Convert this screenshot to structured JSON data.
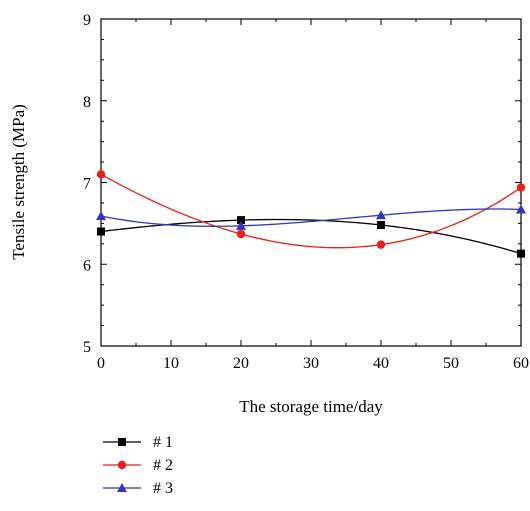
{
  "chart_data": {
    "type": "line",
    "title": "",
    "xlabel": "The storage time/day",
    "ylabel": "Tensile strength (MPa)",
    "xlim": [
      0,
      60
    ],
    "ylim": [
      5,
      9
    ],
    "xticks": [
      "0",
      "10",
      "20",
      "30",
      "40",
      "50",
      "60"
    ],
    "yticks": [
      "5",
      "6",
      "7",
      "8",
      "9"
    ],
    "grid": false,
    "legend_position": "bottom-left, below plot",
    "smooth": true,
    "series": [
      {
        "name": "# 1",
        "color": "#000000",
        "marker": "square",
        "x": [
          0,
          20,
          40,
          60
        ],
        "y": [
          6.4,
          6.54,
          6.48,
          6.13
        ]
      },
      {
        "name": "# 2",
        "color": "#e8201c",
        "marker": "circle",
        "x": [
          0,
          20,
          40,
          60
        ],
        "y": [
          7.1,
          6.37,
          6.24,
          6.94
        ]
      },
      {
        "name": "# 3",
        "color": "#3535b5",
        "marker": "triangle",
        "x": [
          0,
          20,
          40,
          60
        ],
        "y": [
          6.59,
          6.47,
          6.6,
          6.67
        ]
      }
    ]
  }
}
